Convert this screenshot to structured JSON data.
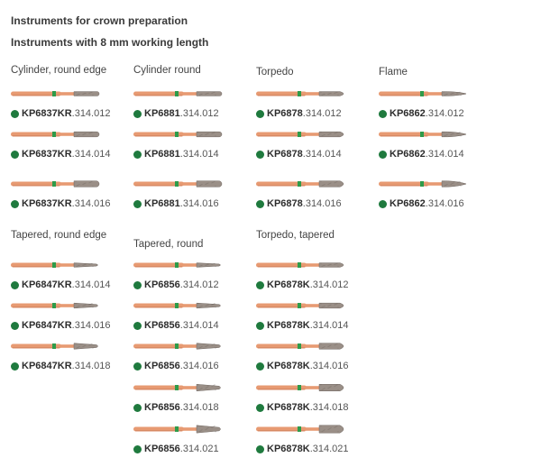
{
  "headings": {
    "title": "Instruments for crown preparation",
    "subtitle": "Instruments with 8 mm working length"
  },
  "colors": {
    "shank": "#e79a72",
    "shank_shadow": "#c97a55",
    "ring": "#2e9b4a",
    "diamond": "#9a8f87",
    "diamond_dark": "#6f6660",
    "dot": "#1f7a3e"
  },
  "groups": [
    {
      "title": "Cylinder, round edge",
      "items": [
        {
          "code": "KP6837KR",
          "suffix": ".314.012",
          "shape": "cylinder"
        },
        {
          "code": "KP6837KR",
          "suffix": ".314.014",
          "shape": "cylinder"
        },
        {
          "code": "KP6837KR",
          "suffix": ".314.016",
          "shape": "cylinder"
        }
      ]
    },
    {
      "title": "Cylinder round",
      "items": [
        {
          "code": "KP6881",
          "suffix": ".314.012",
          "shape": "cylinder"
        },
        {
          "code": "KP6881",
          "suffix": ".314.014",
          "shape": "cylinder"
        },
        {
          "code": "KP6881",
          "suffix": ".314.016",
          "shape": "cylinder"
        }
      ]
    },
    {
      "title": "Torpedo",
      "items": [
        {
          "code": "KP6878",
          "suffix": ".314.012",
          "shape": "torpedo"
        },
        {
          "code": "KP6878",
          "suffix": ".314.014",
          "shape": "torpedo"
        },
        {
          "code": "KP6878",
          "suffix": ".314.016",
          "shape": "torpedo"
        }
      ]
    },
    {
      "title": "Flame",
      "items": [
        {
          "code": "KP6862",
          "suffix": ".314.012",
          "shape": "flame"
        },
        {
          "code": "KP6862",
          "suffix": ".314.014",
          "shape": "flame"
        },
        {
          "code": "KP6862",
          "suffix": ".314.016",
          "shape": "flame"
        }
      ]
    },
    {
      "title": "Tapered, round edge",
      "items": [
        {
          "code": "KP6847KR",
          "suffix": ".314.014",
          "shape": "tapered"
        },
        {
          "code": "KP6847KR",
          "suffix": ".314.016",
          "shape": "tapered"
        },
        {
          "code": "KP6847KR",
          "suffix": ".314.018",
          "shape": "tapered"
        }
      ]
    },
    {
      "title": "Tapered, round",
      "items": [
        {
          "code": "KP6856",
          "suffix": ".314.012",
          "shape": "tapered"
        },
        {
          "code": "KP6856",
          "suffix": ".314.014",
          "shape": "tapered"
        },
        {
          "code": "KP6856",
          "suffix": ".314.016",
          "shape": "tapered"
        },
        {
          "code": "KP6856",
          "suffix": ".314.018",
          "shape": "tapered"
        },
        {
          "code": "KP6856",
          "suffix": ".314.021",
          "shape": "tapered"
        }
      ]
    },
    {
      "title": "Torpedo, tapered",
      "items": [
        {
          "code": "KP6878K",
          "suffix": ".314.012",
          "shape": "torpedo"
        },
        {
          "code": "KP6878K",
          "suffix": ".314.014",
          "shape": "torpedo"
        },
        {
          "code": "KP6878K",
          "suffix": ".314.016",
          "shape": "torpedo"
        },
        {
          "code": "KP6878K",
          "suffix": ".314.018",
          "shape": "torpedo"
        },
        {
          "code": "KP6878K",
          "suffix": ".314.021",
          "shape": "torpedo"
        }
      ]
    }
  ]
}
